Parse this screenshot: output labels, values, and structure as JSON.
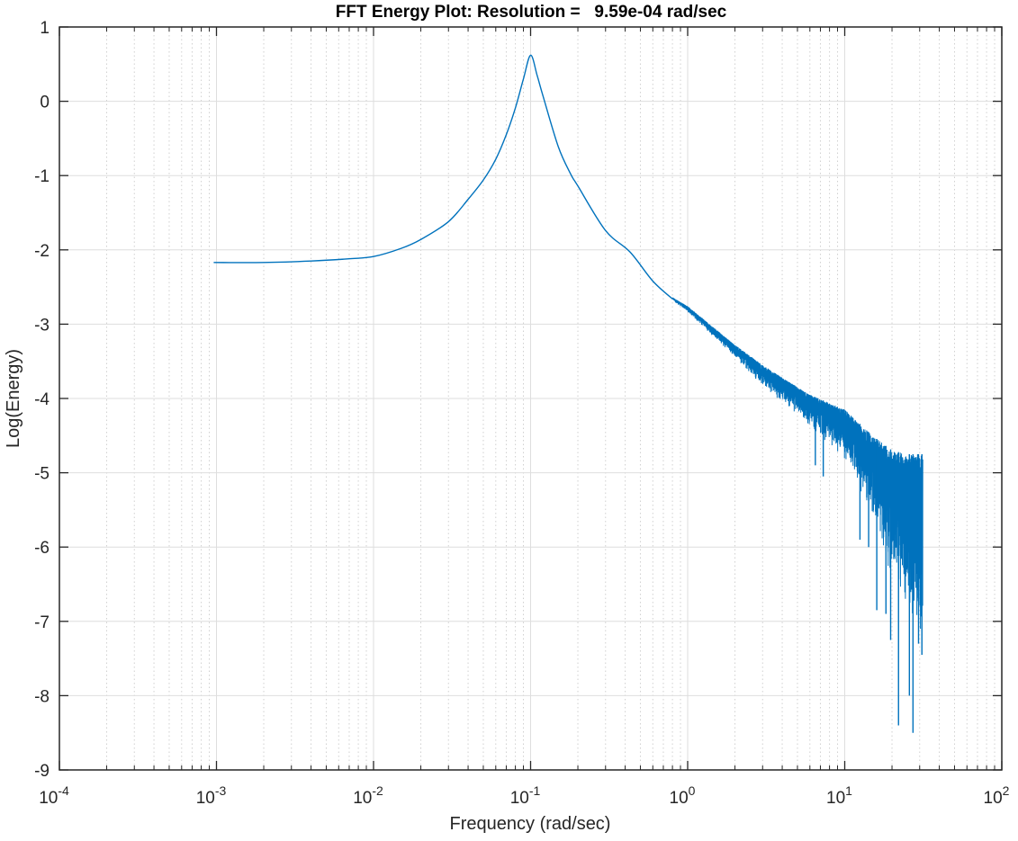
{
  "chart_data": {
    "type": "line",
    "title": "FFT Energy Plot: Resolution =   9.59e-04 rad/sec",
    "xlabel": "Frequency (rad/sec)",
    "ylabel": "Log(Energy)",
    "xscale": "log",
    "xlim": [
      0.0001,
      100
    ],
    "ylim": [
      -9,
      1
    ],
    "grid": "on (major solid, minor dotted)",
    "line_color": "#0072BD",
    "xticks": [
      {
        "base": "10",
        "exp": "-4"
      },
      {
        "base": "10",
        "exp": "-3"
      },
      {
        "base": "10",
        "exp": "-2"
      },
      {
        "base": "10",
        "exp": "-1"
      },
      {
        "base": "10",
        "exp": "0"
      },
      {
        "base": "10",
        "exp": "1"
      },
      {
        "base": "10",
        "exp": "2"
      }
    ],
    "yticks": [
      "1",
      "0",
      "-1",
      "-2",
      "-3",
      "-4",
      "-5",
      "-6",
      "-7",
      "-8",
      "-9"
    ],
    "smooth_curve": {
      "x": [
        0.00096,
        0.002,
        0.004,
        0.007,
        0.01,
        0.015,
        0.02,
        0.03,
        0.04,
        0.05,
        0.06,
        0.07,
        0.08,
        0.09,
        0.1,
        0.11,
        0.12,
        0.15,
        0.18,
        0.2,
        0.3,
        0.43,
        0.6,
        0.8
      ],
      "y": [
        -2.17,
        -2.17,
        -2.15,
        -2.12,
        -2.09,
        -1.98,
        -1.86,
        -1.62,
        -1.32,
        -1.06,
        -0.78,
        -0.45,
        -0.09,
        0.3,
        0.62,
        0.35,
        0.07,
        -0.61,
        -0.98,
        -1.14,
        -1.74,
        -2.03,
        -2.42,
        -2.66
      ]
    },
    "noisy_tail": {
      "x": [
        0.8,
        1,
        2,
        3,
        4,
        6,
        10,
        15,
        20,
        25,
        31.4
      ],
      "upper": [
        -2.64,
        -2.76,
        -3.28,
        -3.55,
        -3.72,
        -3.95,
        -4.15,
        -4.5,
        -4.7,
        -4.75,
        -4.75
      ],
      "lower": [
        -2.68,
        -2.84,
        -3.45,
        -3.85,
        -4.05,
        -4.4,
        -4.85,
        -5.6,
        -6.5,
        -6.9,
        -7.4
      ]
    },
    "spikes": [
      {
        "x": 6.5,
        "y": -4.9
      },
      {
        "x": 7.3,
        "y": -5.05
      },
      {
        "x": 12.5,
        "y": -5.9
      },
      {
        "x": 14.2,
        "y": -6.0
      },
      {
        "x": 16.0,
        "y": -6.85
      },
      {
        "x": 18.3,
        "y": -6.9
      },
      {
        "x": 19.6,
        "y": -7.25
      },
      {
        "x": 22.0,
        "y": -8.4
      },
      {
        "x": 25.8,
        "y": -8.0
      },
      {
        "x": 27.2,
        "y": -8.5
      },
      {
        "x": 29.5,
        "y": -7.3
      },
      {
        "x": 31.0,
        "y": -7.45
      }
    ]
  }
}
